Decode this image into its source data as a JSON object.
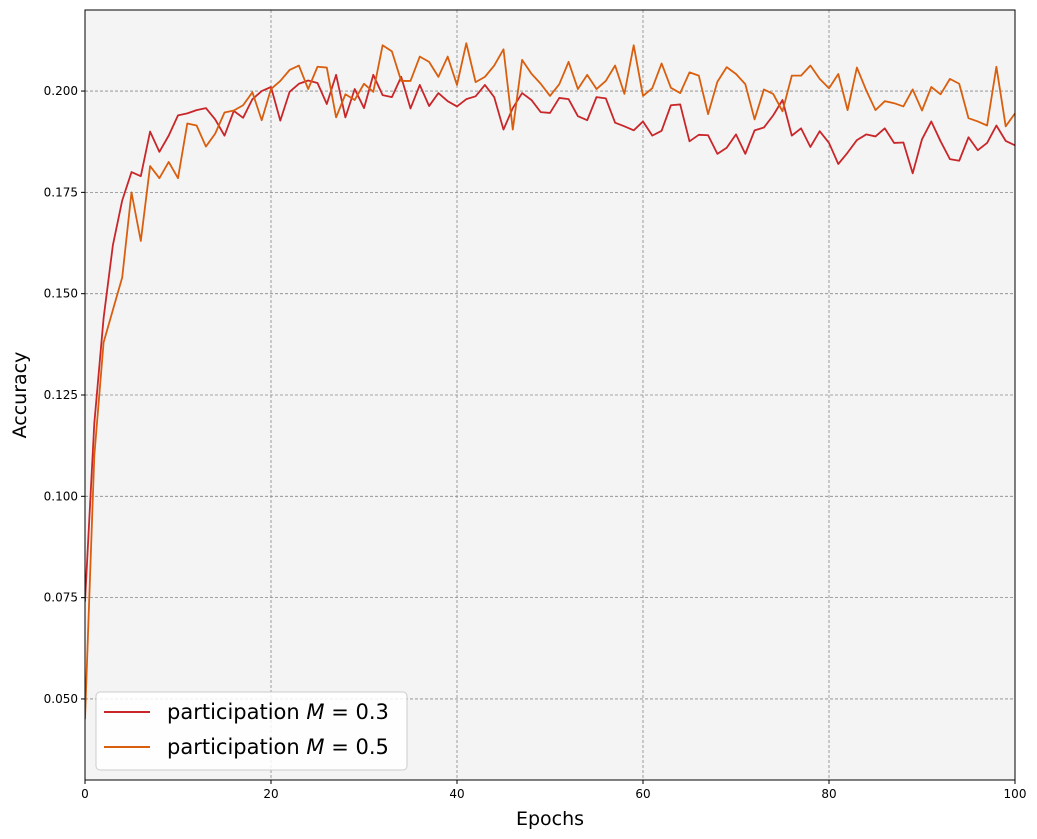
{
  "chart_data": {
    "type": "line",
    "title": "",
    "xlabel": "Epochs",
    "ylabel": "Accuracy",
    "xlim": [
      0,
      100
    ],
    "ylim": [
      0.03,
      0.22
    ],
    "xticks": [
      0,
      20,
      40,
      60,
      80,
      100
    ],
    "xtick_labels": [
      "0",
      "20",
      "40",
      "60",
      "80",
      "100"
    ],
    "yticks": [
      0.05,
      0.075,
      0.1,
      0.125,
      0.15,
      0.175,
      0.2
    ],
    "ytick_labels": [
      "0.050",
      "0.075",
      "0.100",
      "0.125",
      "0.150",
      "0.175",
      "0.200"
    ],
    "grid": true,
    "legend_position": "lower-left",
    "background_color": "#f4f4f4",
    "x": [
      0,
      1,
      2,
      3,
      4,
      5,
      6,
      7,
      8,
      9,
      10,
      11,
      12,
      13,
      14,
      15,
      16,
      17,
      18,
      19,
      20,
      21,
      22,
      23,
      24,
      25,
      26,
      27,
      28,
      29,
      30,
      31,
      32,
      33,
      34,
      35,
      36,
      37,
      38,
      39,
      40,
      41,
      42,
      43,
      44,
      45,
      46,
      47,
      48,
      49,
      50,
      51,
      52,
      53,
      54,
      55,
      56,
      57,
      58,
      59,
      60,
      61,
      62,
      63,
      64,
      65,
      66,
      67,
      68,
      69,
      70,
      71,
      72,
      73,
      74,
      75,
      76,
      77,
      78,
      79,
      80,
      81,
      82,
      83,
      84,
      85,
      86,
      87,
      88,
      89,
      90,
      91,
      92,
      93,
      94,
      95,
      96,
      97,
      98,
      99,
      100
    ],
    "series": [
      {
        "name": "participation M = 0.3",
        "legend_prefix": "participation ",
        "legend_math": "M = 0.3",
        "color": "#c9262a",
        "values": [
          0.074,
          0.118,
          0.144,
          0.162,
          0.173,
          0.18,
          0.179,
          0.19,
          0.185,
          0.189,
          0.194,
          0.1945,
          0.1953,
          0.1958,
          0.193,
          0.189,
          0.1951,
          0.1934,
          0.198,
          0.2,
          0.201,
          0.1927,
          0.1998,
          0.2018,
          0.2026,
          0.202,
          0.1968,
          0.204,
          0.1935,
          0.2005,
          0.1958,
          0.204,
          0.199,
          0.1985,
          0.2035,
          0.1957,
          0.2015,
          0.1963,
          0.1995,
          0.1975,
          0.1962,
          0.198,
          0.1987,
          0.2015,
          0.1985,
          0.1905,
          0.1958,
          0.1995,
          0.1978,
          0.1948,
          0.1946,
          0.1983,
          0.198,
          0.1938,
          0.1928,
          0.1985,
          0.1982,
          0.1922,
          0.1913,
          0.1903,
          0.1925,
          0.189,
          0.1902,
          0.1965,
          0.1967,
          0.1876,
          0.1892,
          0.1891,
          0.1845,
          0.186,
          0.1893,
          0.1845,
          0.1903,
          0.191,
          0.194,
          0.1978,
          0.189,
          0.1908,
          0.1862,
          0.1901,
          0.1872,
          0.182,
          0.1848,
          0.1879,
          0.1893,
          0.1888,
          0.1908,
          0.1872,
          0.1873,
          0.1797,
          0.1881,
          0.1925,
          0.1876,
          0.1832,
          0.1828,
          0.1886,
          0.1854,
          0.1872,
          0.1915,
          0.1877,
          0.1866
        ]
      },
      {
        "name": "participation M = 0.5",
        "legend_prefix": "participation ",
        "legend_math": "M = 0.5",
        "color": "#d95f0e",
        "values": [
          0.045,
          0.11,
          0.138,
          0.146,
          0.154,
          0.175,
          0.163,
          0.1815,
          0.1785,
          0.1825,
          0.1785,
          0.192,
          0.1915,
          0.1863,
          0.1895,
          0.1947,
          0.1952,
          0.1965,
          0.1997,
          0.1928,
          0.2005,
          0.2025,
          0.2052,
          0.2063,
          0.2005,
          0.206,
          0.2058,
          0.1935,
          0.1992,
          0.1978,
          0.2018,
          0.1998,
          0.2113,
          0.2098,
          0.2025,
          0.2025,
          0.2085,
          0.2072,
          0.2035,
          0.2085,
          0.2015,
          0.2118,
          0.2022,
          0.2035,
          0.2063,
          0.2103,
          0.1905,
          0.2077,
          0.2043,
          0.2018,
          0.1988,
          0.2017,
          0.2072,
          0.2005,
          0.204,
          0.2005,
          0.2025,
          0.2063,
          0.1993,
          0.2113,
          0.1988,
          0.2007,
          0.2068,
          0.2008,
          0.1995,
          0.2046,
          0.2038,
          0.1943,
          0.2023,
          0.2059,
          0.2042,
          0.2017,
          0.193,
          0.2004,
          0.1993,
          0.195,
          0.2038,
          0.2038,
          0.2063,
          0.203,
          0.2007,
          0.2042,
          0.1953,
          0.2058,
          0.2002,
          0.1953,
          0.1975,
          0.197,
          0.1962,
          0.2004,
          0.1952,
          0.201,
          0.1992,
          0.203,
          0.2018,
          0.1933,
          0.1925,
          0.1915,
          0.206,
          0.1913,
          0.1945
        ]
      }
    ]
  }
}
